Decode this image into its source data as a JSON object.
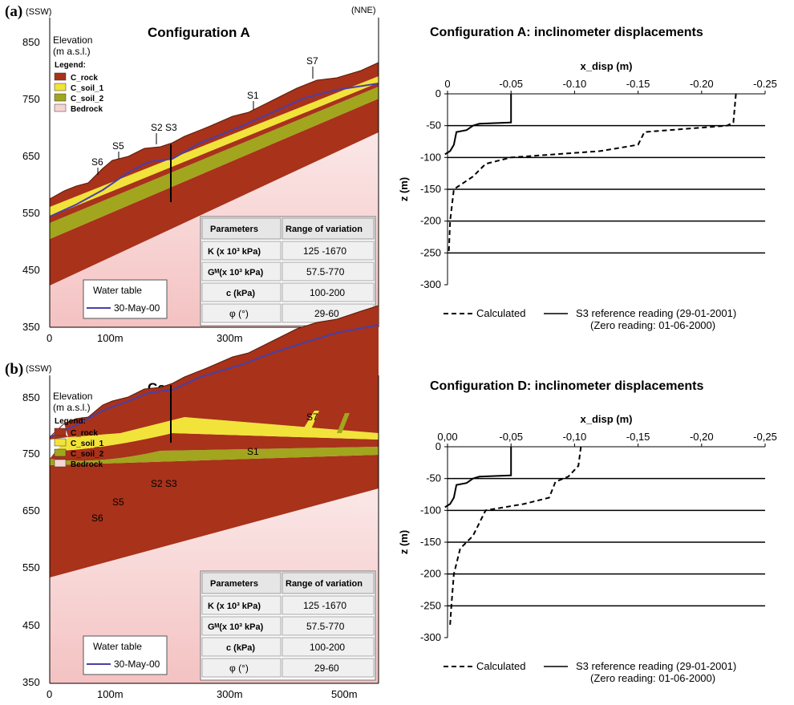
{
  "panels": [
    {
      "label": "(a)",
      "config_title": "Configuration A",
      "inclinometer_title": "Configuration A: inclinometer displacements"
    },
    {
      "label": "(b)",
      "config_title": "Configuration D",
      "inclinometer_title": "Configuration D: inclinometer displacements"
    }
  ],
  "section": {
    "left_dir": "(SSW)",
    "right_dir": "(NNE)",
    "elev_label_1": "Elevation",
    "elev_label_2": "(m a.s.l.)",
    "y_ticks": [
      "850",
      "750",
      "650",
      "550",
      "450",
      "350"
    ],
    "x_ticks": [
      "0",
      "100m",
      "300m",
      "500m"
    ],
    "legend_title": "Legend:",
    "legend_items": [
      {
        "label": "C_rock",
        "color": "#a8321a"
      },
      {
        "label": "C_soil_1",
        "color": "#f2e33a"
      },
      {
        "label": "C_soil_2",
        "color": "#a2a51e"
      },
      {
        "label": "Bedrock",
        "color": "#f7d4d4"
      }
    ],
    "stations": [
      "S6",
      "S5",
      "S2",
      "S3",
      "S1",
      "S7"
    ],
    "water_table_title": "Water table",
    "water_table_date": "30-May-00",
    "water_table_color": "#4a3fa8",
    "table": {
      "headers": [
        "Parameters",
        "Range of variation"
      ],
      "rows": [
        [
          "K (x 10³ kPa)",
          "125 -1670"
        ],
        [
          "Gᴹ(x 10³ kPa)",
          "57.5-770"
        ],
        [
          "c (kPa)",
          "100-200"
        ],
        [
          "φ (°)",
          "29-60"
        ]
      ]
    }
  },
  "chart_data": [
    {
      "type": "line",
      "title": "Configuration A: inclinometer displacements",
      "xlabel": "x_disp (m)",
      "ylabel": "z (m)",
      "xlim": [
        0,
        -0.25
      ],
      "ylim": [
        0,
        -300
      ],
      "x_tick_labels": [
        "0",
        "-0.05",
        "-0.10",
        "-0.15",
        "-0.20",
        "-0.25"
      ],
      "y_tick_labels": [
        "0",
        "-50",
        "-100",
        "-150",
        "-200",
        "-250",
        "-300"
      ],
      "grid": "horizontal lines at -50, -100, -150, -200, -250",
      "series": [
        {
          "name": "Calculated",
          "style": "dashed",
          "points": [
            [
              -0.227,
              0
            ],
            [
              -0.225,
              -45
            ],
            [
              -0.22,
              -50
            ],
            [
              -0.155,
              -60
            ],
            [
              -0.15,
              -80
            ],
            [
              -0.12,
              -90
            ],
            [
              -0.05,
              -100
            ],
            [
              -0.03,
              -110
            ],
            [
              -0.02,
              -130
            ],
            [
              -0.005,
              -150
            ],
            [
              -0.002,
              -200
            ],
            [
              -0.001,
              -250
            ]
          ]
        },
        {
          "name": "S3 reference reading (29-01-2001)",
          "style": "solid",
          "points": [
            [
              -0.05,
              0
            ],
            [
              -0.05,
              -45
            ],
            [
              -0.025,
              -47
            ],
            [
              -0.02,
              -50
            ],
            [
              -0.015,
              -57
            ],
            [
              -0.007,
              -60
            ],
            [
              -0.005,
              -80
            ],
            [
              -0.002,
              -90
            ],
            [
              0.002,
              -95
            ]
          ]
        }
      ],
      "legend_note": "(Zero reading: 01-06-2000)"
    },
    {
      "type": "line",
      "title": "Configuration D: inclinometer displacements",
      "xlabel": "x_disp (m)",
      "ylabel": "z (m)",
      "xlim": [
        0,
        -0.25
      ],
      "ylim": [
        0,
        -300
      ],
      "x_tick_labels": [
        "0,00",
        "-0,05",
        "-0,10",
        "-0,15",
        "-0,20",
        "-0,25"
      ],
      "y_tick_labels": [
        "0",
        "-50",
        "-100",
        "-150",
        "-200",
        "-250",
        "-300"
      ],
      "grid": "horizontal lines at -50, -100, -150, -200, -250",
      "series": [
        {
          "name": "Calculated",
          "style": "dashed",
          "points": [
            [
              -0.105,
              0
            ],
            [
              -0.103,
              -30
            ],
            [
              -0.095,
              -47
            ],
            [
              -0.085,
              -55
            ],
            [
              -0.08,
              -80
            ],
            [
              -0.06,
              -90
            ],
            [
              -0.03,
              -100
            ],
            [
              -0.025,
              -120
            ],
            [
              -0.02,
              -140
            ],
            [
              -0.01,
              -160
            ],
            [
              -0.005,
              -200
            ],
            [
              -0.003,
              -250
            ],
            [
              -0.002,
              -280
            ]
          ]
        },
        {
          "name": "S3 reference reading (29-01-2001)",
          "style": "solid",
          "points": [
            [
              -0.05,
              0
            ],
            [
              -0.05,
              -45
            ],
            [
              -0.025,
              -47
            ],
            [
              -0.02,
              -50
            ],
            [
              -0.015,
              -57
            ],
            [
              -0.007,
              -60
            ],
            [
              -0.005,
              -80
            ],
            [
              -0.002,
              -90
            ],
            [
              0.002,
              -95
            ]
          ]
        }
      ],
      "legend_note": "(Zero reading: 01-06-2000)"
    }
  ]
}
